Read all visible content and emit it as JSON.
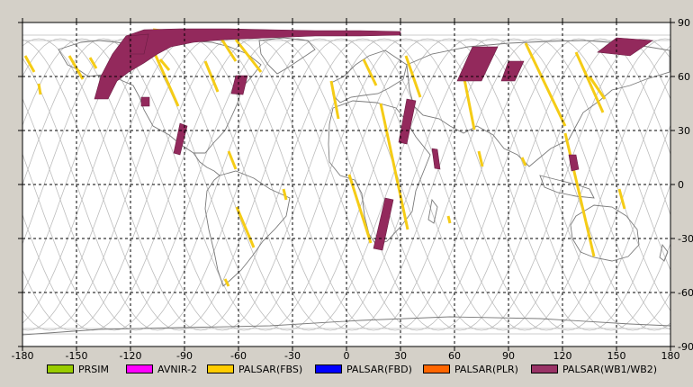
{
  "map": {
    "x_ticks": [
      "-180",
      "-150",
      "-120",
      "-90",
      "-60",
      "-30",
      "0",
      "30",
      "60",
      "90",
      "120",
      "150",
      "180"
    ],
    "y_ticks": [
      "90",
      "60",
      "30",
      "0",
      "-30",
      "-60",
      "-90"
    ],
    "swath_colors": {
      "fbs": "#f5cc16",
      "wb": "#93295c"
    },
    "wb_swaths": [
      {
        "id": "wb-arc-arctic"
      },
      {
        "id": "wb-canada-west"
      },
      {
        "id": "wb-canada-small"
      },
      {
        "id": "wb-central-america"
      },
      {
        "id": "wb-labrador"
      },
      {
        "id": "wb-red-sea"
      },
      {
        "id": "wb-gulf"
      },
      {
        "id": "wb-mozambique"
      },
      {
        "id": "wb-ural"
      },
      {
        "id": "wb-siberia"
      },
      {
        "id": "wb-chukotka"
      },
      {
        "id": "wb-philippines"
      }
    ]
  },
  "legend": [
    {
      "label": "PRSIM",
      "color": "#99cc00"
    },
    {
      "label": "AVNIR-2",
      "color": "#ff00ff"
    },
    {
      "label": "PALSAR(FBS)",
      "color": "#ffcc00"
    },
    {
      "label": "PALSAR(FBD)",
      "color": "#0000ff"
    },
    {
      "label": "PALSAR(PLR)",
      "color": "#ff6600"
    },
    {
      "label": "PALSAR(WB1/WB2)",
      "color": "#993366"
    }
  ]
}
